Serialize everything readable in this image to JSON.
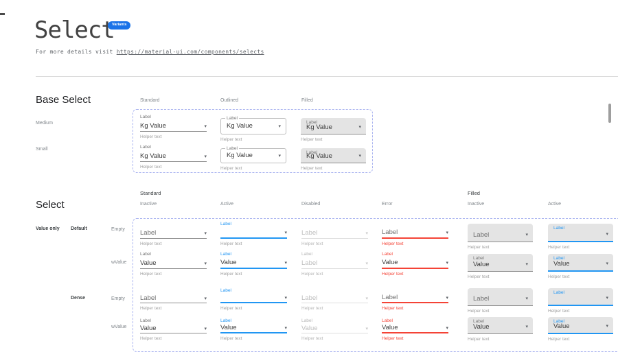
{
  "header": {
    "title": "Select",
    "badge": "Variants",
    "link_prefix": "For more details visit ",
    "link_url": "https://material-ui.com/components/selects"
  },
  "icons": {
    "dropdown_arrow": "▾"
  },
  "colors": {
    "accent_blue": "#2196F3",
    "badge_blue": "#1a73e8",
    "error_red": "#f44336",
    "filled_bg": "#e4e4e4",
    "dashed_frame": "#a9b3f0"
  },
  "base_select": {
    "heading": "Base Select",
    "column_headers": [
      "Standard",
      "Outlined",
      "Filled"
    ],
    "row_headers": [
      "Medium",
      "Small"
    ],
    "label": "Label",
    "value": "Kg  Value",
    "helper": "Helper text"
  },
  "select_section": {
    "heading": "Select",
    "group_headers": [
      "Standard",
      "Filled"
    ],
    "column_headers": [
      "Inactive",
      "Active",
      "Disabled",
      "Error",
      "Inactive",
      "Active"
    ],
    "row_group_label": "Value only",
    "variant_labels": [
      "Default",
      "Dense"
    ],
    "row_labels": [
      "Empty",
      "wValue",
      "Empty",
      "wValue"
    ],
    "rows": [
      {
        "name": "default-empty",
        "cells": [
          {
            "variant": "standard",
            "state": "inactive",
            "float_label": "",
            "value": "Label",
            "placeholder": true,
            "helper": "Helper text"
          },
          {
            "variant": "standard",
            "state": "active",
            "float_label": "Label",
            "value": "",
            "placeholder": false,
            "helper": "Helper text"
          },
          {
            "variant": "standard",
            "state": "disabled",
            "float_label": "",
            "value": "Label",
            "placeholder": true,
            "helper": "Helper text"
          },
          {
            "variant": "standard",
            "state": "error",
            "float_label": "",
            "value": "Label",
            "placeholder": true,
            "helper": "Helper text"
          },
          {
            "variant": "filled",
            "state": "inactive",
            "float_label": "",
            "value": "Label",
            "placeholder": true,
            "helper": "Helper text"
          },
          {
            "variant": "filled",
            "state": "active",
            "float_label": "Label",
            "value": "",
            "placeholder": false,
            "helper": "Helper text"
          }
        ]
      },
      {
        "name": "default-wvalue",
        "cells": [
          {
            "variant": "standard",
            "state": "inactive",
            "float_label": "Label",
            "value": "Value",
            "placeholder": false,
            "helper": "Helper text"
          },
          {
            "variant": "standard",
            "state": "active",
            "float_label": "Label",
            "value": "Value",
            "placeholder": false,
            "helper": "Helper text"
          },
          {
            "variant": "standard",
            "state": "disabled",
            "float_label": "Label",
            "value": "Label",
            "placeholder": true,
            "helper": "Helper text"
          },
          {
            "variant": "standard",
            "state": "error",
            "float_label": "Label",
            "value": "Value",
            "placeholder": false,
            "helper": "Helper text"
          },
          {
            "variant": "filled",
            "state": "inactive",
            "float_label": "Label",
            "value": "Value",
            "placeholder": false,
            "helper": "Helper text"
          },
          {
            "variant": "filled",
            "state": "active",
            "float_label": "Label",
            "value": "Value",
            "placeholder": false,
            "helper": "Helper text"
          }
        ]
      },
      {
        "name": "dense-empty",
        "cells": [
          {
            "variant": "standard",
            "state": "inactive",
            "float_label": "",
            "value": "Label",
            "placeholder": true,
            "helper": "Helper text"
          },
          {
            "variant": "standard",
            "state": "active",
            "float_label": "Label",
            "value": "",
            "placeholder": false,
            "helper": "Helper text"
          },
          {
            "variant": "standard",
            "state": "disabled",
            "float_label": "",
            "value": "Label",
            "placeholder": true,
            "helper": "Helper text"
          },
          {
            "variant": "standard",
            "state": "error",
            "float_label": "",
            "value": "Label",
            "placeholder": true,
            "helper": "Helper text"
          },
          {
            "variant": "filled",
            "state": "inactive",
            "float_label": "",
            "value": "Label",
            "placeholder": true,
            "helper": "Helper text"
          },
          {
            "variant": "filled",
            "state": "active",
            "float_label": "Label",
            "value": "",
            "placeholder": false,
            "helper": "Helper text"
          }
        ]
      },
      {
        "name": "dense-wvalue",
        "cells": [
          {
            "variant": "standard",
            "state": "inactive",
            "float_label": "Label",
            "value": "Value",
            "placeholder": false,
            "helper": "Helper text"
          },
          {
            "variant": "standard",
            "state": "active",
            "float_label": "Label",
            "value": "Value",
            "placeholder": false,
            "helper": "Helper text"
          },
          {
            "variant": "standard",
            "state": "disabled",
            "float_label": "Label",
            "value": "Value",
            "placeholder": true,
            "helper": "Helper text"
          },
          {
            "variant": "standard",
            "state": "error",
            "float_label": "Label",
            "value": "Value",
            "placeholder": false,
            "helper": "Helper text"
          },
          {
            "variant": "filled",
            "state": "inactive",
            "float_label": "Label",
            "value": "Value",
            "placeholder": false,
            "helper": "Helper text"
          },
          {
            "variant": "filled",
            "state": "active",
            "float_label": "Label",
            "value": "Value",
            "placeholder": false,
            "helper": "Helper text"
          }
        ]
      }
    ]
  }
}
